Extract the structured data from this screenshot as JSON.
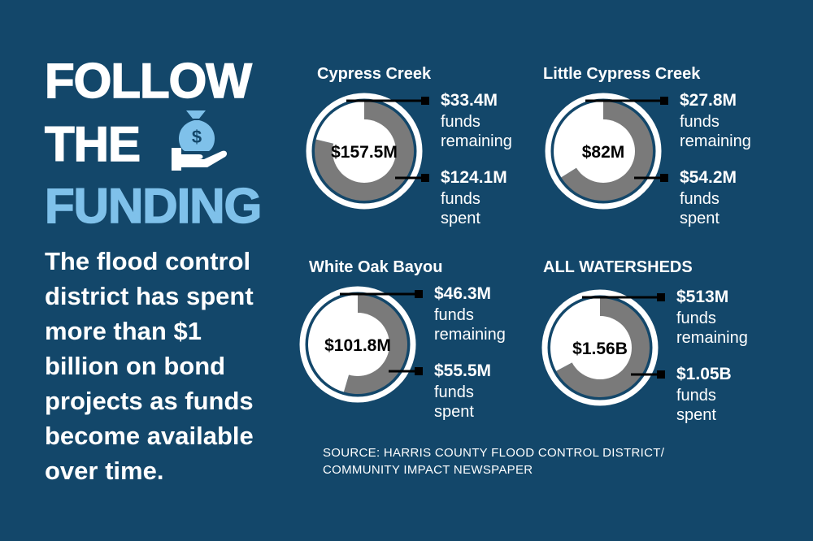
{
  "headline": [
    "FOLLOW",
    "THE",
    "FUNDING"
  ],
  "summary": [
    "The flood control",
    "district has spent",
    "more than $1",
    "billion on bond",
    "projects as funds",
    "become available",
    "over time."
  ],
  "source": [
    "SOURCE: HARRIS COUNTY FLOOD CONTROL DISTRICT/",
    "COMMUNITY IMPACT NEWSPAPER"
  ],
  "chart_data": [
    {
      "type": "donut",
      "title": "Cypress Creek",
      "center_label": "$157.5M",
      "categories": [
        "funds remaining",
        "funds spent"
      ],
      "values": [
        33.4,
        124.1
      ],
      "value_labels": [
        "$33.4M",
        "$124.1M"
      ],
      "colors": [
        "#ffffff",
        "#7a7a7a"
      ]
    },
    {
      "type": "donut",
      "title": "Little Cypress Creek",
      "center_label": "$82M",
      "categories": [
        "funds remaining",
        "funds spent"
      ],
      "values": [
        27.8,
        54.2
      ],
      "value_labels": [
        "$27.8M",
        "$54.2M"
      ],
      "colors": [
        "#ffffff",
        "#7a7a7a"
      ]
    },
    {
      "type": "donut",
      "title": "White Oak Bayou",
      "center_label": "$101.8M",
      "categories": [
        "funds remaining",
        "funds spent"
      ],
      "values": [
        46.3,
        55.5
      ],
      "value_labels": [
        "$46.3M",
        "$55.5M"
      ],
      "colors": [
        "#ffffff",
        "#7a7a7a"
      ]
    },
    {
      "type": "donut",
      "title": "ALL WATERSHEDS",
      "center_label": "$1.56B",
      "categories": [
        "funds remaining",
        "funds spent"
      ],
      "values": [
        513,
        1050
      ],
      "value_labels": [
        "$513M",
        "$1.05B"
      ],
      "colors": [
        "#ffffff",
        "#7a7a7a"
      ]
    }
  ]
}
